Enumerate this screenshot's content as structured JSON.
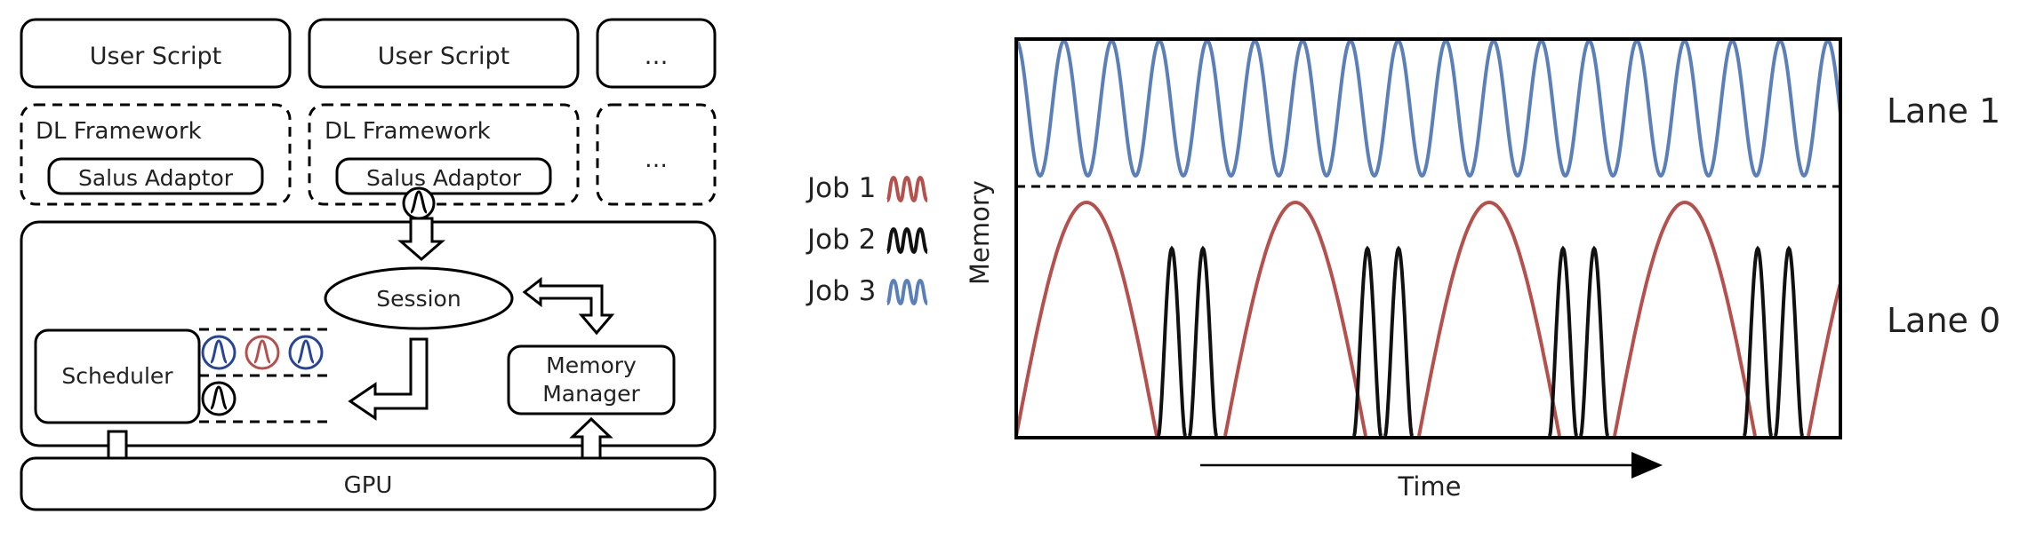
{
  "architecture": {
    "user_scripts": [
      "User Script",
      "User Script",
      "…"
    ],
    "frameworks": [
      {
        "title": "DL Framework",
        "adaptor": "Salus Adaptor"
      },
      {
        "title": "DL Framework",
        "adaptor": "Salus Adaptor"
      },
      {
        "title": "…"
      }
    ],
    "session": "Session",
    "scheduler": "Scheduler",
    "memory_manager": [
      "Memory",
      "Manager"
    ],
    "gpu": "GPU"
  },
  "legend": {
    "items": [
      {
        "label": "Job 1",
        "color": "#b5504d"
      },
      {
        "label": "Job 2",
        "color": "#111111"
      },
      {
        "label": "Job 3",
        "color": "#5b80b9"
      }
    ]
  },
  "lanes": {
    "lane1": "Lane 1",
    "lane0": "Lane 0",
    "ylabel": "Memory",
    "xlabel": "Time"
  }
}
